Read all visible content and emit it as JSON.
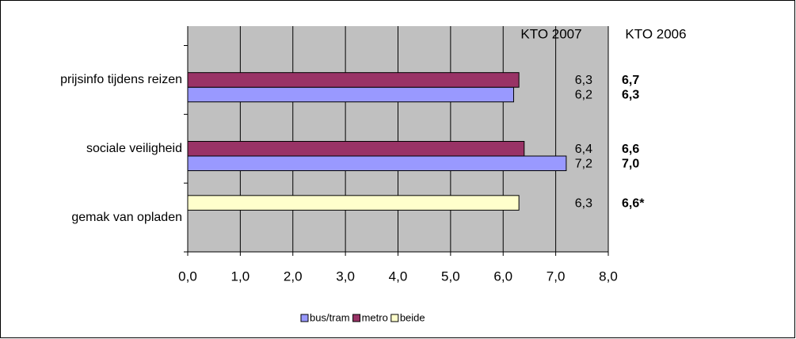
{
  "chart_data": {
    "type": "bar",
    "orientation": "horizontal",
    "columns": [
      "KTO 2007",
      "KTO 2006"
    ],
    "categories": [
      "prijsinfo tijdens reizen",
      "sociale veiligheid",
      "gemak van opladen"
    ],
    "series": [
      {
        "name": "bus/tram",
        "color": "#9999ff",
        "label_color": "#000000",
        "previous_color": "#9999ff",
        "values": [
          6.2,
          7.2,
          null
        ],
        "value_labels": [
          "6,2",
          "7,2",
          null
        ],
        "previous_values": [
          6.3,
          7.0,
          null
        ],
        "previous_labels": [
          "6,3",
          "7,0",
          null
        ]
      },
      {
        "name": "metro",
        "color": "#993366",
        "label_color": "#a04a74",
        "previous_color": "#993366",
        "values": [
          6.3,
          6.4,
          null
        ],
        "value_labels": [
          "6,3",
          "6,4",
          null
        ],
        "previous_values": [
          6.7,
          6.6,
          null
        ],
        "previous_labels": [
          "6,7",
          "6,6",
          null
        ]
      },
      {
        "name": "beide",
        "color": "#ffffcc",
        "label_color": "#000000",
        "previous_color": "#000000",
        "values": [
          null,
          null,
          6.3
        ],
        "value_labels": [
          null,
          null,
          "6,3"
        ],
        "previous_values": [
          null,
          null,
          6.6
        ],
        "previous_labels": [
          null,
          null,
          "6,6*"
        ]
      }
    ],
    "xlim": [
      0,
      8
    ],
    "xticks": [
      {
        "value": 0,
        "label": "0,0"
      },
      {
        "value": 1,
        "label": "1,0"
      },
      {
        "value": 2,
        "label": "2,0"
      },
      {
        "value": 3,
        "label": "3,0"
      },
      {
        "value": 4,
        "label": "4,0"
      },
      {
        "value": 5,
        "label": "5,0"
      },
      {
        "value": 6,
        "label": "6,0"
      },
      {
        "value": 7,
        "label": "7,0"
      },
      {
        "value": 8,
        "label": "8,0"
      }
    ],
    "grid": true,
    "legend": "bottom"
  }
}
